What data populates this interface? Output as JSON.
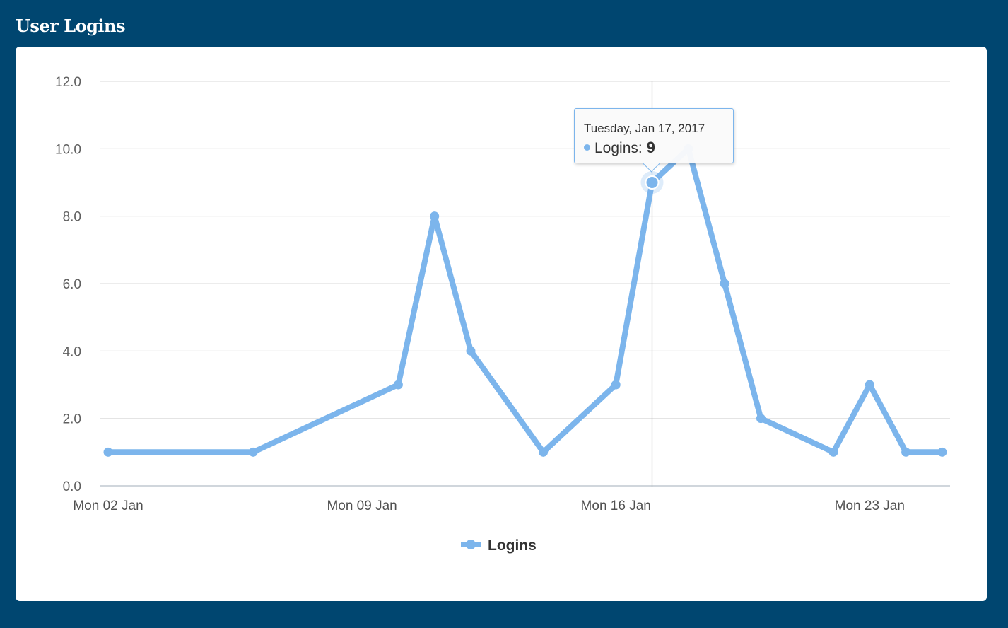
{
  "panel": {
    "title": "User Logins"
  },
  "chart_data": {
    "type": "line",
    "title": "",
    "xlabel": "",
    "ylabel": "",
    "ylim": [
      0,
      12
    ],
    "y_ticks": [
      "0.0",
      "2.0",
      "4.0",
      "6.0",
      "8.0",
      "10.0",
      "12.0"
    ],
    "x_ticks": [
      {
        "label": "Mon 02 Jan",
        "date": "2017-01-02"
      },
      {
        "label": "Mon 09 Jan",
        "date": "2017-01-09"
      },
      {
        "label": "Mon 16 Jan",
        "date": "2017-01-16"
      },
      {
        "label": "Mon 23 Jan",
        "date": "2017-01-23"
      }
    ],
    "grid": true,
    "legend": "bottom-center",
    "color": "#7cb5ec",
    "series": [
      {
        "name": "Logins",
        "x": [
          "2017-01-02",
          "2017-01-06",
          "2017-01-10",
          "2017-01-11",
          "2017-01-12",
          "2017-01-14",
          "2017-01-16",
          "2017-01-17",
          "2017-01-18",
          "2017-01-19",
          "2017-01-20",
          "2017-01-22",
          "2017-01-23",
          "2017-01-24",
          "2017-01-25"
        ],
        "values": [
          1,
          1,
          3,
          8,
          4,
          1,
          3,
          9,
          10,
          6,
          2,
          1,
          3,
          1,
          1
        ]
      }
    ],
    "tooltip": {
      "date": "Tuesday, Jan 17, 2017",
      "series": "Logins",
      "separator": ":",
      "value": "9",
      "point_index": 7
    }
  }
}
